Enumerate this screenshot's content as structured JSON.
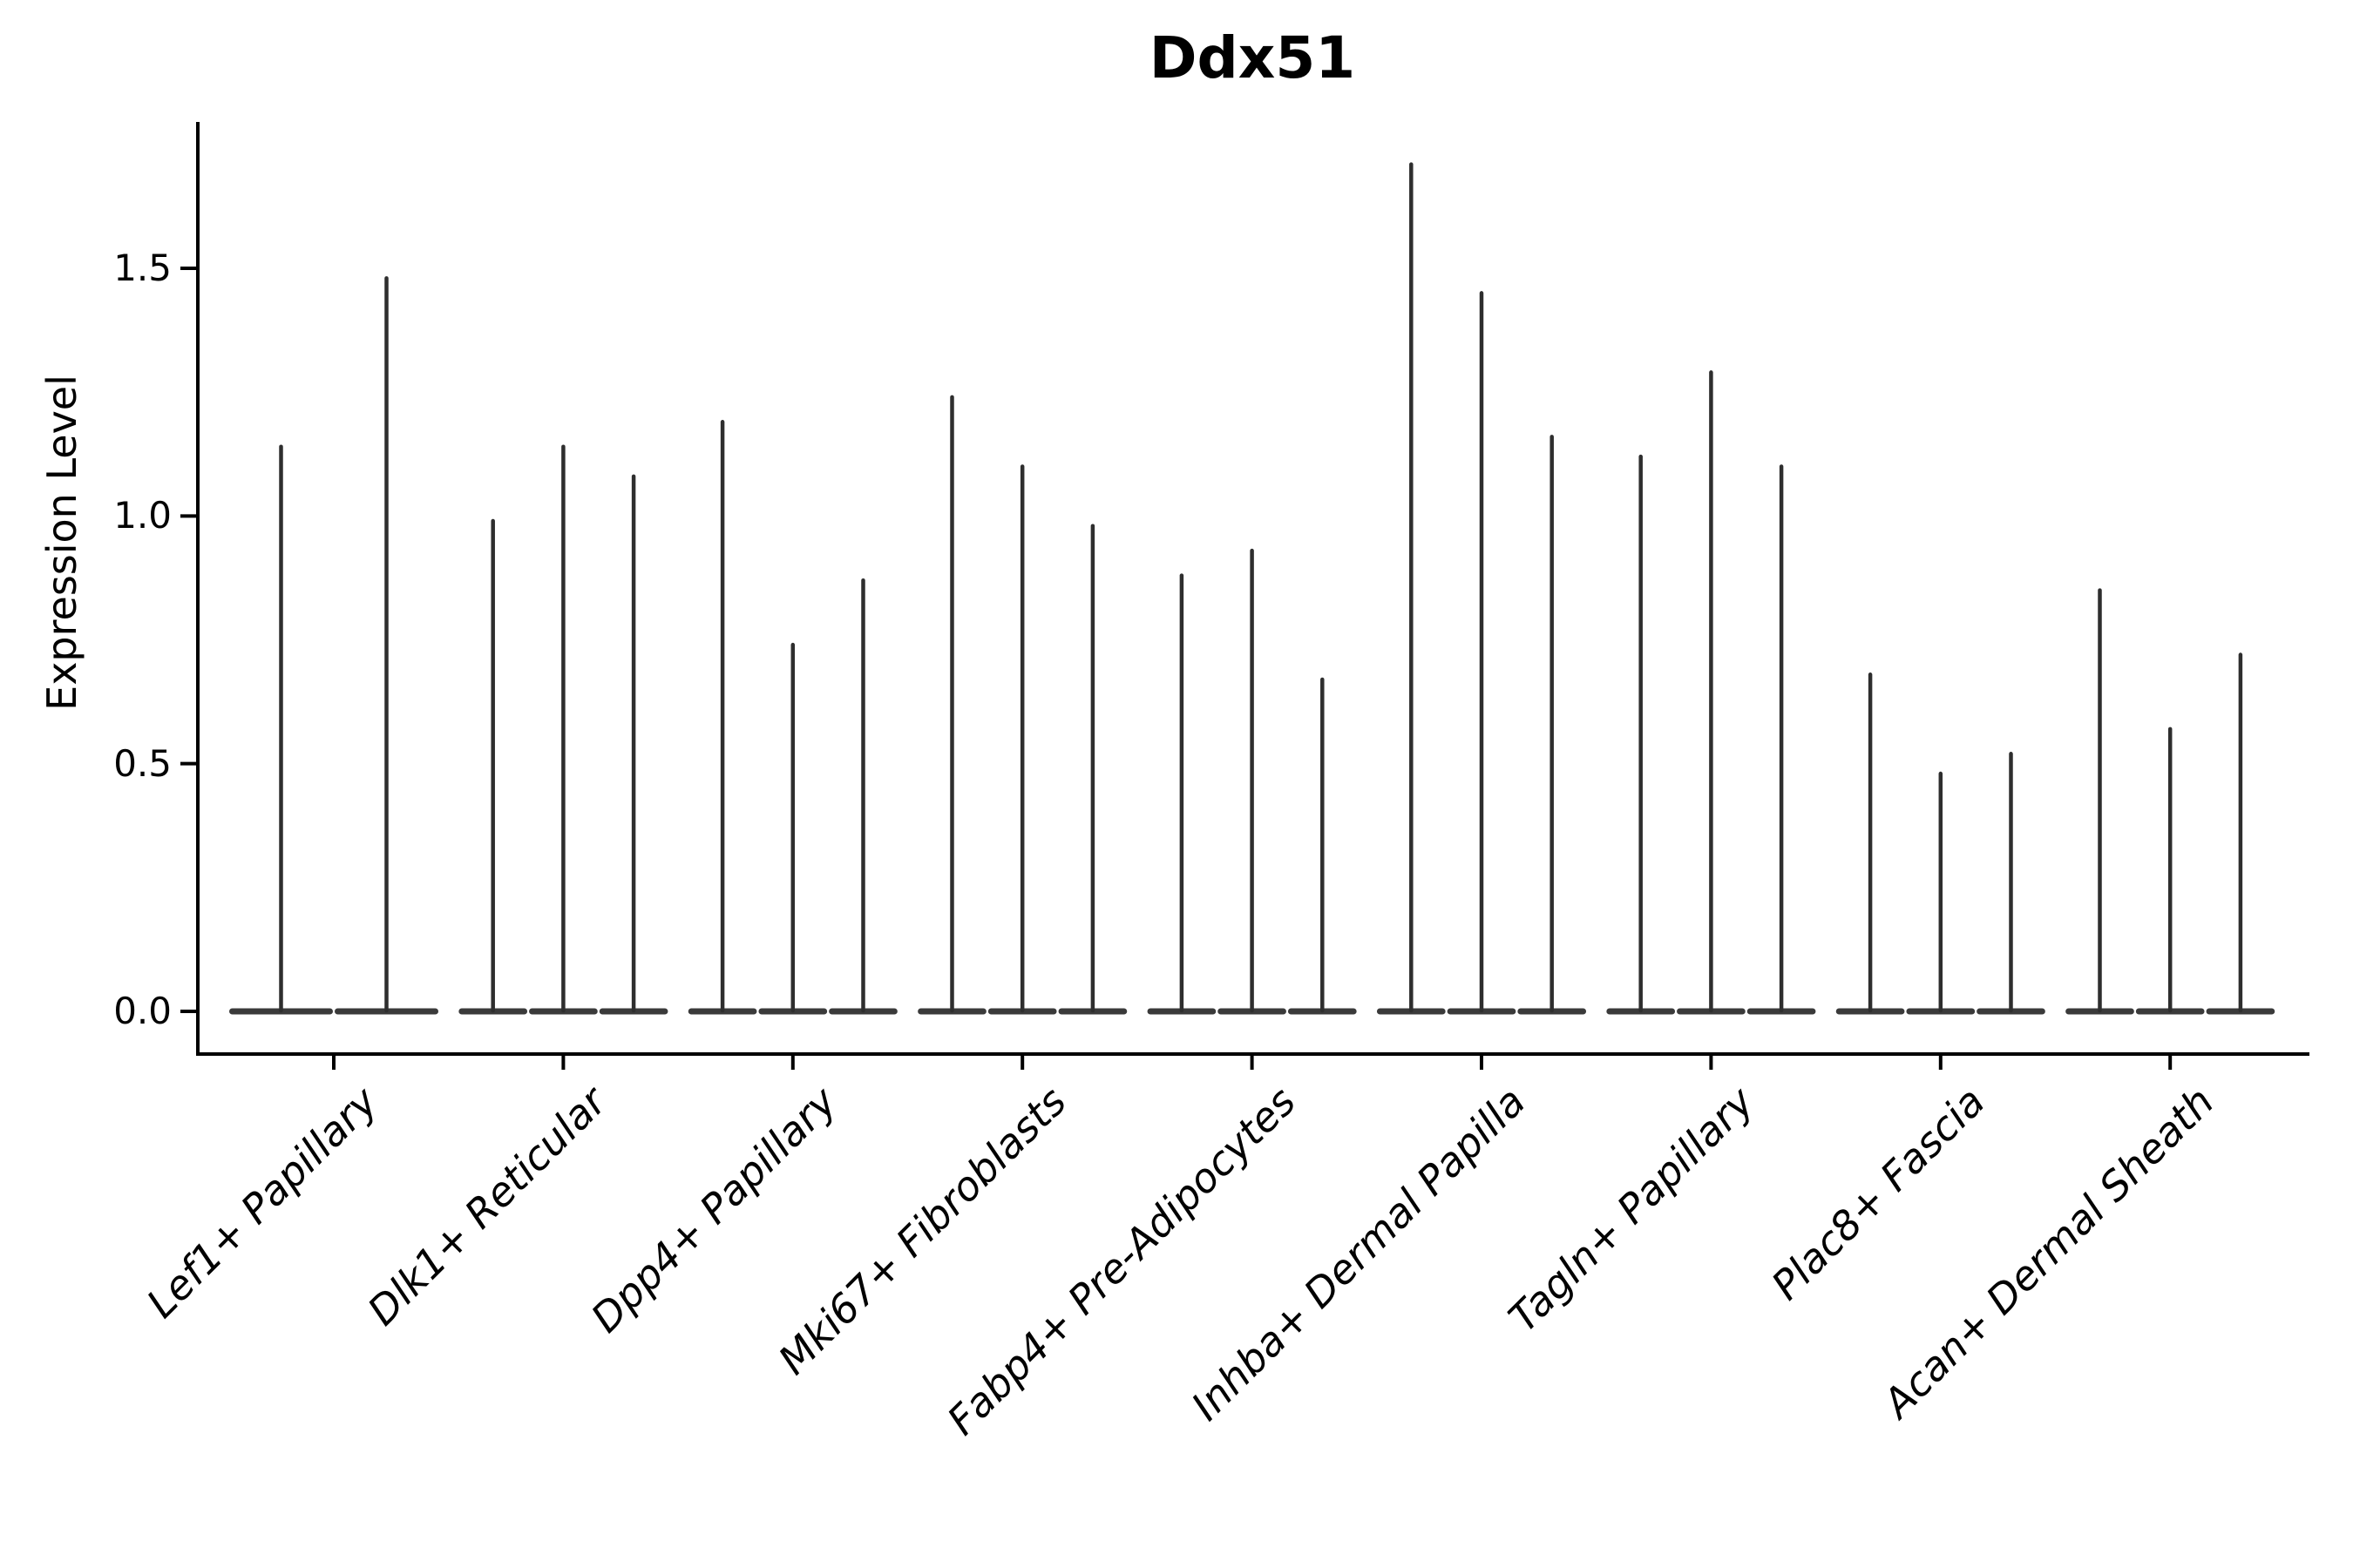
{
  "title": "Ddx51",
  "y_axis": {
    "label": "Expression Level",
    "tick_labels": [
      "0.0",
      "0.5",
      "1.0",
      "1.5"
    ],
    "tick_values": [
      0.0,
      0.5,
      1.0,
      1.5
    ]
  },
  "chart_data": {
    "type": "violin",
    "title": "Ddx51",
    "xlabel": "",
    "ylabel": "Expression Level",
    "ylim": [
      -0.09,
      1.8
    ],
    "yticks": [
      0.0,
      0.5,
      1.0,
      1.5
    ],
    "grid": false,
    "legend": "none",
    "description": "Single-cell gene expression violin plot for gene Ddx51. Each cell-type group shows extremely flat violin bodies at expression 0 with thin vertical spikes rising to the maximum expression value of each violin.",
    "categories": [
      {
        "label": "Lef1+ Papillary",
        "spike_maxima": [
          1.14,
          1.48
        ]
      },
      {
        "label": "Dlk1+ Reticular",
        "spike_maxima": [
          0.99,
          1.14,
          1.08
        ]
      },
      {
        "label": "Dpp4+ Papillary",
        "spike_maxima": [
          1.19,
          0.74,
          0.87
        ]
      },
      {
        "label": "Mki67+ Fibroblasts",
        "spike_maxima": [
          1.24,
          1.1,
          0.98
        ]
      },
      {
        "label": "Fabp4+ Pre-Adipocytes",
        "spike_maxima": [
          0.88,
          0.93,
          0.67
        ]
      },
      {
        "label": "Inhba+ Dermal Papilla",
        "spike_maxima": [
          1.71,
          1.45,
          1.16
        ]
      },
      {
        "label": "Tagln+ Papillary",
        "spike_maxima": [
          1.12,
          1.29,
          1.1
        ]
      },
      {
        "label": "Plac8+ Fascia",
        "spike_maxima": [
          0.68,
          0.48,
          0.52
        ]
      },
      {
        "label": "Acan+ Dermal Sheath",
        "spike_maxima": [
          0.85,
          0.57,
          0.72
        ]
      }
    ],
    "colors": {
      "violin_spike": "#2e2e2e",
      "violin_base": "#3a3a3a",
      "axis": "#000000",
      "text": "#000000",
      "background": "#ffffff"
    }
  }
}
